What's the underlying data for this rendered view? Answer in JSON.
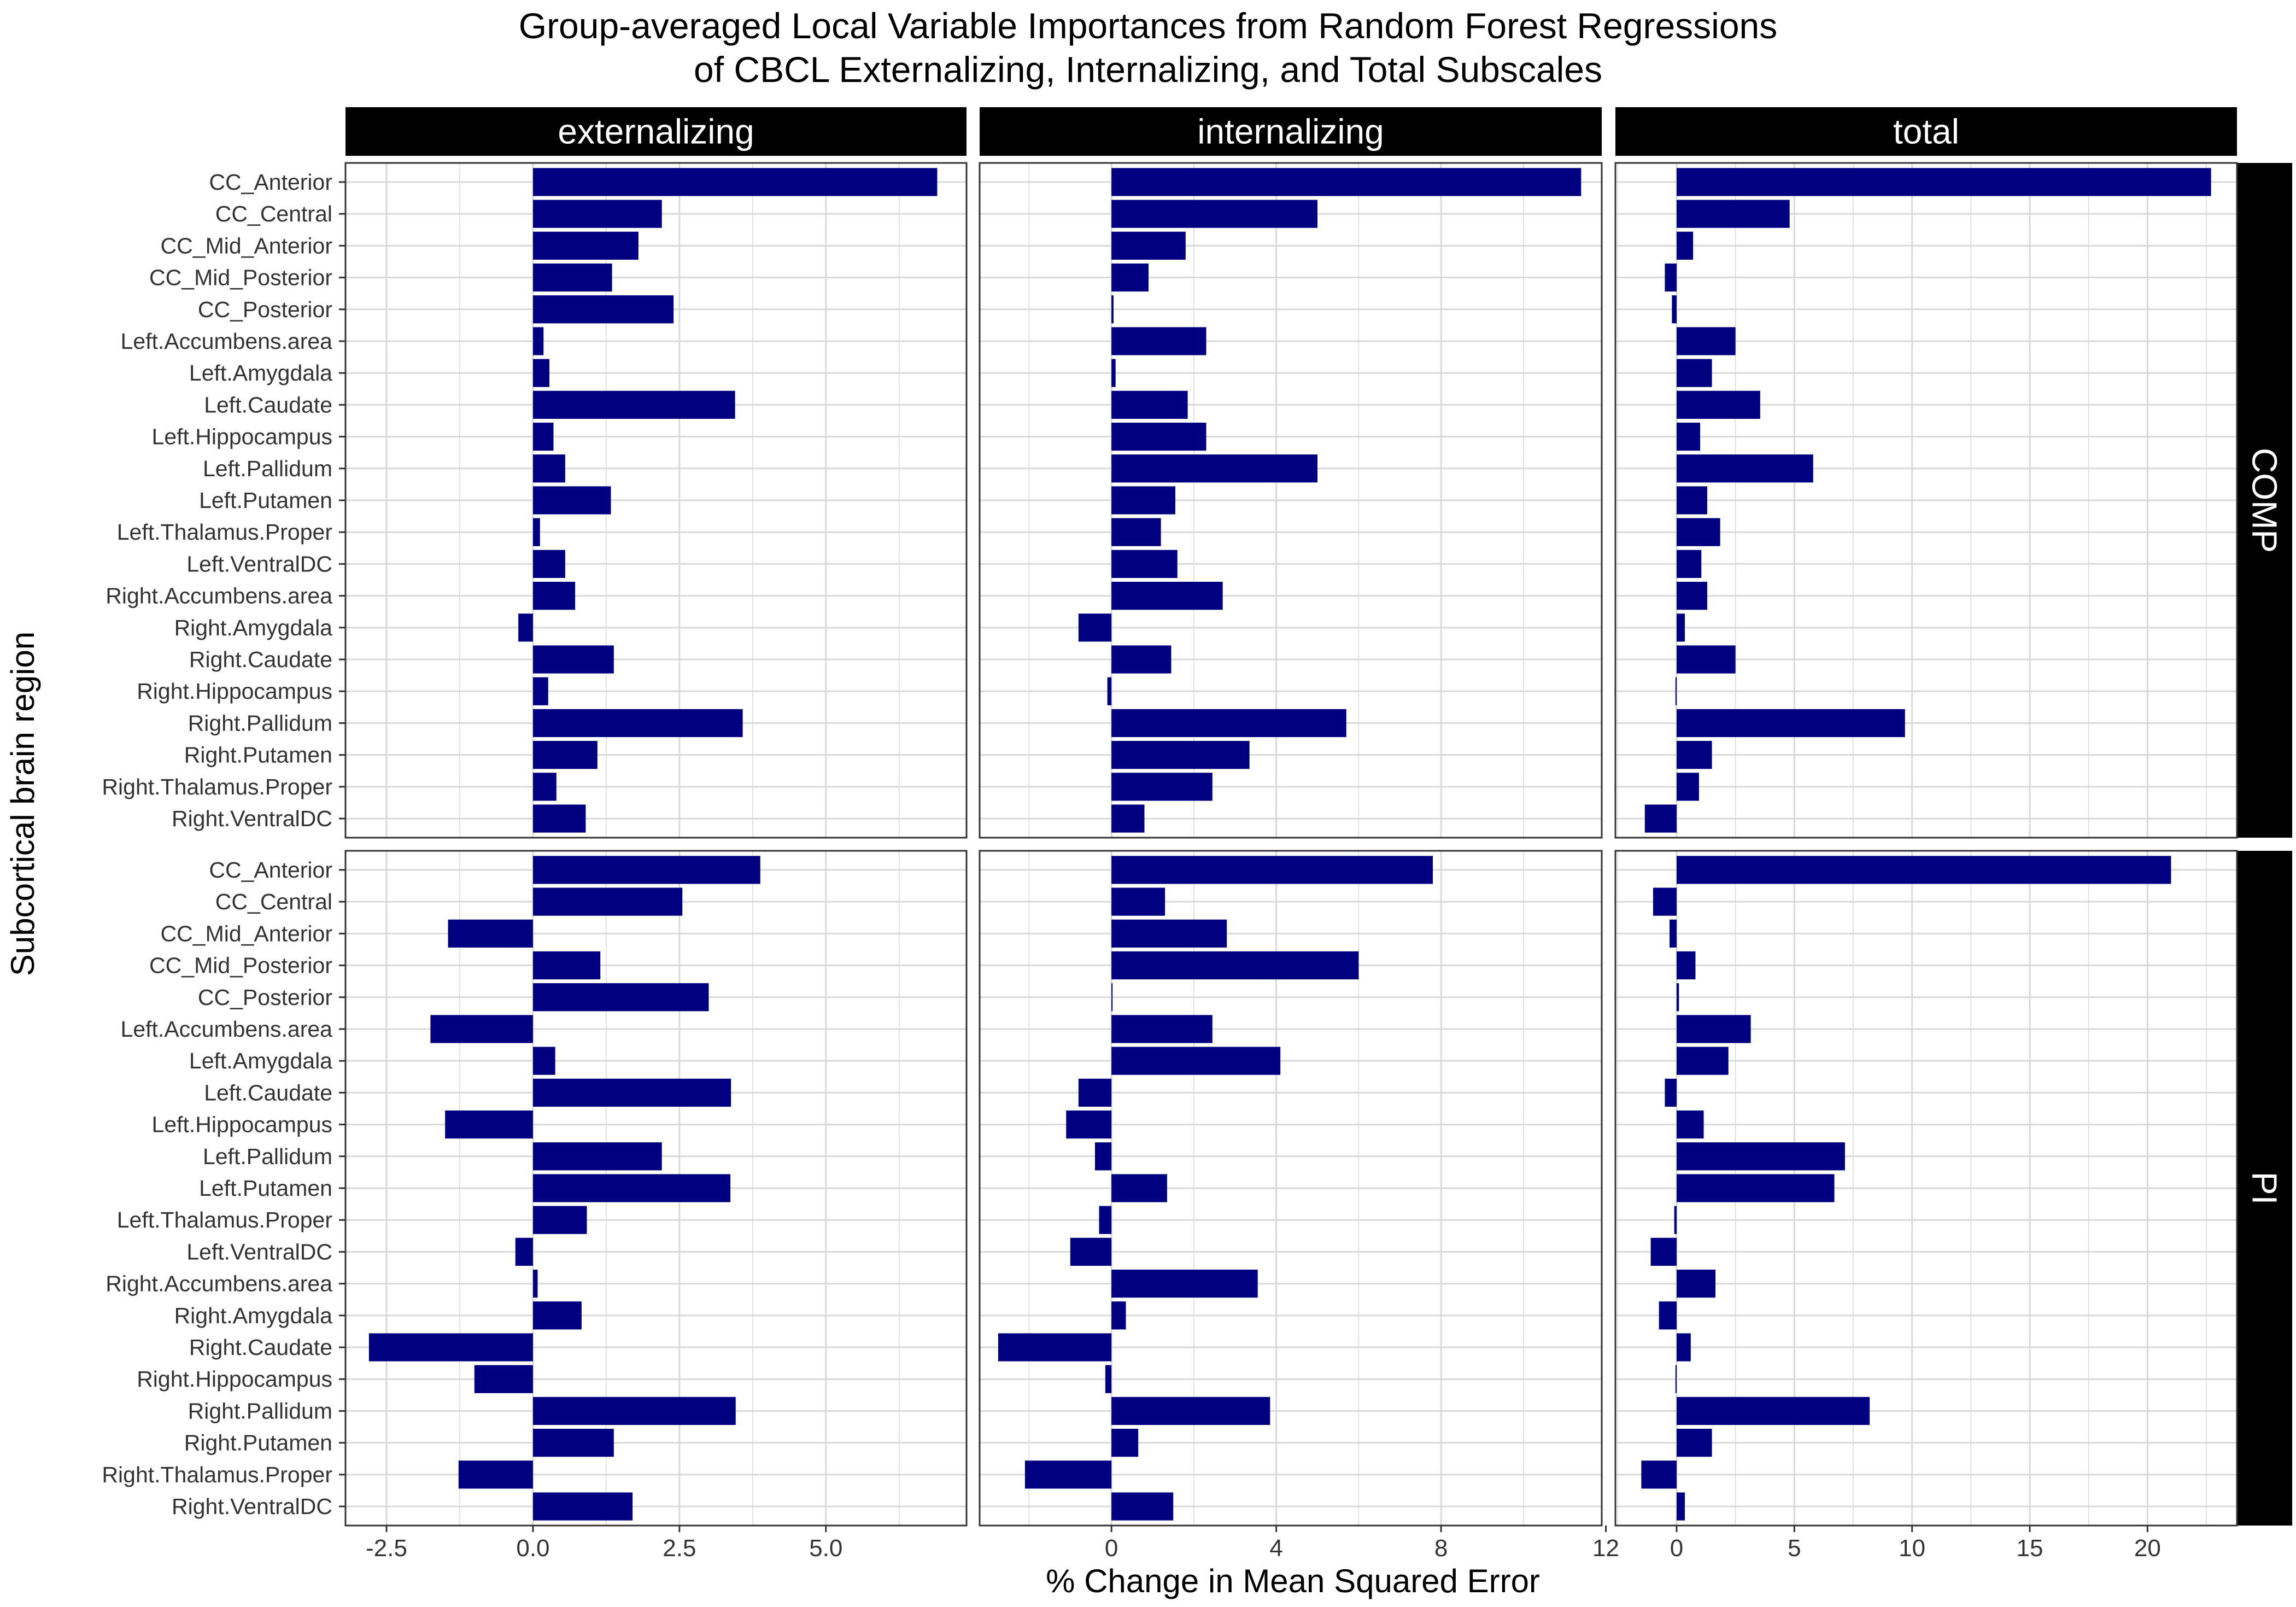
{
  "chart_data": {
    "type": "bar",
    "orientation": "horizontal",
    "title_lines": [
      "Group-averaged Local Variable Importances from Random Forest Regressions",
      "of CBCL Externalizing, Internalizing, and Total Subscales"
    ],
    "xlabel": "% Change in Mean Squared Error",
    "ylabel": "Subcortical brain region",
    "bar_color": "#000080",
    "grid": true,
    "categories": [
      "CC_Anterior",
      "CC_Central",
      "CC_Mid_Anterior",
      "CC_Mid_Posterior",
      "CC_Posterior",
      "Left.Accumbens.area",
      "Left.Amygdala",
      "Left.Caudate",
      "Left.Hippocampus",
      "Left.Pallidum",
      "Left.Putamen",
      "Left.Thalamus.Proper",
      "Left.VentralDC",
      "Right.Accumbens.area",
      "Right.Amygdala",
      "Right.Caudate",
      "Right.Hippocampus",
      "Right.Pallidum",
      "Right.Putamen",
      "Right.Thalamus.Proper",
      "Right.VentralDC"
    ],
    "columns": [
      {
        "label": "externalizing",
        "xlim": [
          -3.2,
          7.4
        ],
        "ticks": [
          -2.5,
          0.0,
          2.5,
          5.0
        ],
        "tick_labels": [
          "-2.5",
          "0.0",
          "2.5",
          "5.0"
        ]
      },
      {
        "label": "internalizing",
        "xlim": [
          -3.2,
          11.9
        ],
        "ticks": [
          0,
          4,
          8,
          12
        ],
        "tick_labels": [
          "0",
          "4",
          "8",
          "12"
        ]
      },
      {
        "label": "total",
        "xlim": [
          -2.6,
          23.8
        ],
        "ticks": [
          0,
          5,
          10,
          15,
          20
        ],
        "tick_labels": [
          "0",
          "5",
          "10",
          "15",
          "20"
        ]
      }
    ],
    "rows": [
      {
        "label": "COMP"
      },
      {
        "label": "PI"
      }
    ],
    "panels": [
      {
        "row": "COMP",
        "column": "externalizing",
        "values": [
          6.9,
          2.2,
          1.8,
          1.35,
          2.4,
          0.18,
          0.28,
          3.45,
          0.35,
          0.55,
          1.33,
          0.12,
          0.55,
          0.72,
          -0.25,
          1.38,
          0.26,
          3.58,
          1.1,
          0.4,
          0.9
        ]
      },
      {
        "row": "COMP",
        "column": "internalizing",
        "values": [
          11.4,
          5.0,
          1.8,
          0.9,
          0.05,
          2.3,
          0.1,
          1.85,
          2.3,
          5.0,
          1.55,
          1.2,
          1.6,
          2.7,
          -0.8,
          1.45,
          -0.1,
          5.7,
          3.35,
          2.45,
          0.8
        ]
      },
      {
        "row": "COMP",
        "column": "total",
        "values": [
          22.7,
          4.8,
          0.7,
          -0.5,
          -0.2,
          2.5,
          1.5,
          3.55,
          1.0,
          5.8,
          1.3,
          1.85,
          1.05,
          1.3,
          0.35,
          2.5,
          -0.05,
          9.7,
          1.5,
          0.95,
          -1.35
        ]
      },
      {
        "row": "PI",
        "column": "externalizing",
        "values": [
          3.88,
          2.55,
          -1.45,
          1.15,
          3.0,
          -1.75,
          0.38,
          3.38,
          -1.5,
          2.2,
          3.37,
          0.92,
          -0.3,
          0.08,
          0.83,
          -2.8,
          -1.0,
          3.46,
          1.38,
          -1.27,
          1.7
        ]
      },
      {
        "row": "PI",
        "column": "internalizing",
        "values": [
          7.8,
          1.3,
          2.8,
          6.0,
          0.0,
          2.45,
          4.1,
          -0.8,
          -1.1,
          -0.4,
          1.35,
          -0.3,
          -1.0,
          3.55,
          0.35,
          -2.75,
          -0.15,
          3.85,
          0.65,
          -2.1,
          1.5
        ]
      },
      {
        "row": "PI",
        "column": "total",
        "values": [
          21.0,
          -1.0,
          -0.3,
          0.8,
          0.1,
          3.15,
          2.2,
          -0.5,
          1.15,
          7.15,
          6.7,
          -0.1,
          -1.1,
          1.65,
          -0.75,
          0.6,
          -0.05,
          8.2,
          1.5,
          -1.5,
          0.35
        ]
      }
    ]
  }
}
